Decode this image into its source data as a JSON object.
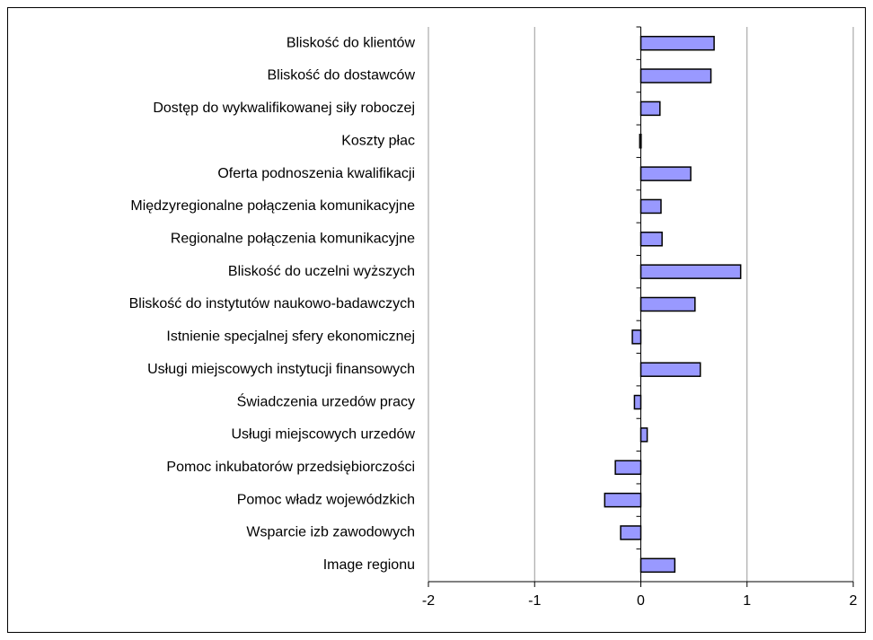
{
  "chart_data": {
    "type": "hbar",
    "categories": [
      "Bliskość do klientów",
      "Bliskość do dostawców",
      "Dostęp do wykwalifikowanej siły roboczej",
      "Koszty płac",
      "Oferta podnoszenia kwalifikacji",
      "Międzyregionalne połączenia komunikacyjne",
      "Regionalne połączenia komunikacyjne",
      "Bliskość do uczelni wyższych",
      "Bliskość do instytutów naukowo-badawczych",
      "Istnienie specjalnej sfery ekonomicznej",
      "Usługi miejscowych instytucji finansowych",
      "Świadczenia urzedów pracy",
      "Usługi miejscowych urzedów",
      "Pomoc inkubatorów przedsiębiorczości",
      "Pomoc władz wojewódzkich",
      "Wsparcie izb zawodowych",
      "Image regionu"
    ],
    "values": [
      0.69,
      0.66,
      0.18,
      -0.01,
      0.47,
      0.19,
      0.2,
      0.94,
      0.51,
      -0.08,
      0.56,
      -0.06,
      0.06,
      -0.24,
      -0.34,
      -0.19,
      0.32
    ],
    "color": "#9999ff",
    "xlim": [
      -2,
      2
    ],
    "xticks": [
      -2,
      -1,
      0,
      1,
      2
    ],
    "grid": true
  }
}
